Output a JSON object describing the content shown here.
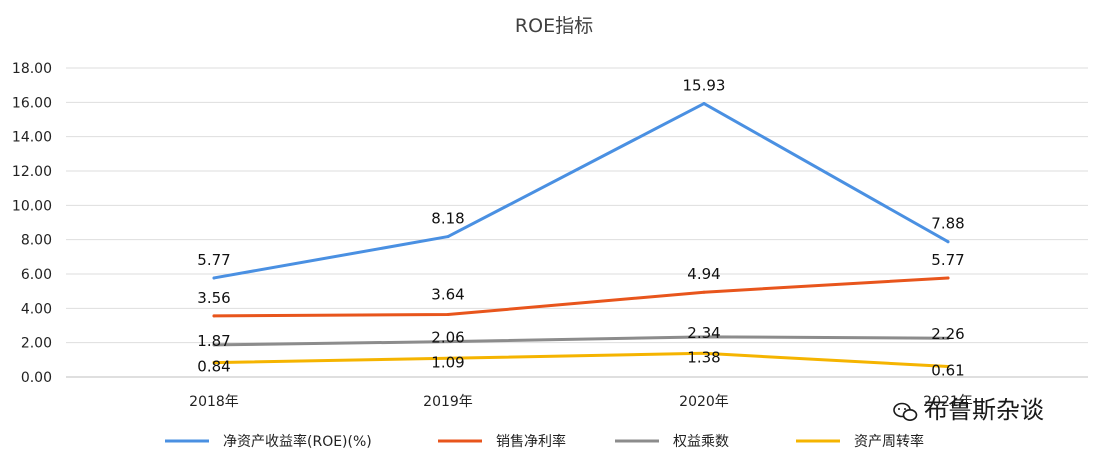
{
  "chart_data": {
    "type": "line",
    "title": "ROE指标",
    "categories": [
      "2018年",
      "2019年",
      "2020年",
      "2021年"
    ],
    "ylim": [
      0,
      18
    ],
    "yticks": [
      "0.00",
      "2.00",
      "4.00",
      "6.00",
      "8.00",
      "10.00",
      "12.00",
      "14.00",
      "16.00",
      "18.00"
    ],
    "grid": true,
    "legend_position": "bottom",
    "series": [
      {
        "name": "净资产收益率(ROE)(%)",
        "color": "#4a90e2",
        "values": [
          5.77,
          8.18,
          15.93,
          7.88
        ],
        "labels": [
          "5.77",
          "8.18",
          "15.93",
          "7.88"
        ]
      },
      {
        "name": "销售净利率",
        "color": "#e8551c",
        "values": [
          3.56,
          3.64,
          4.94,
          5.77
        ],
        "labels": [
          "3.56",
          "3.64",
          "4.94",
          "5.77"
        ]
      },
      {
        "name": "权益乘数",
        "color": "#8c8c8c",
        "values": [
          1.87,
          2.06,
          2.34,
          2.26
        ],
        "labels": [
          "1.87",
          "2.06",
          "2.34",
          "2.26"
        ]
      },
      {
        "name": "资产周转率",
        "color": "#f5b400",
        "values": [
          0.84,
          1.09,
          1.38,
          0.61
        ],
        "labels": [
          "0.84",
          "1.09",
          "1.38",
          "0.61"
        ]
      }
    ]
  },
  "watermark": {
    "text": "布鲁斯杂谈",
    "icon": "wechat-icon"
  }
}
